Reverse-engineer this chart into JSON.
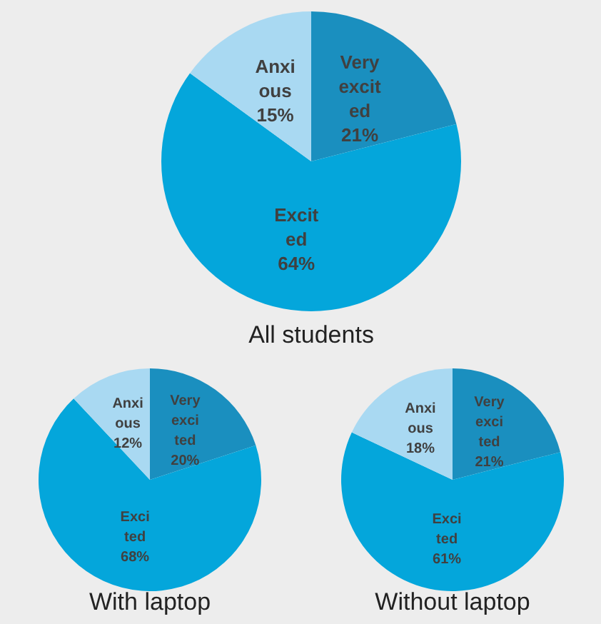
{
  "chart_data": [
    {
      "type": "pie",
      "title": "All students",
      "categories": [
        "Very excited",
        "Excited",
        "Anxious"
      ],
      "values": [
        21,
        64,
        15
      ],
      "value_labels": [
        "21%",
        "64%",
        "15%"
      ],
      "colors": [
        "#1a8fbf",
        "#04a6db",
        "#a9d9f2"
      ]
    },
    {
      "type": "pie",
      "title": "With laptop",
      "categories": [
        "Very excited",
        "Excited",
        "Anxious"
      ],
      "values": [
        20,
        68,
        12
      ],
      "value_labels": [
        "20%",
        "68%",
        "12%"
      ],
      "colors": [
        "#1a8fbf",
        "#04a6db",
        "#a9d9f2"
      ]
    },
    {
      "type": "pie",
      "title": "Without laptop",
      "categories": [
        "Very excited",
        "Excited",
        "Anxious"
      ],
      "values": [
        21,
        61,
        18
      ],
      "value_labels": [
        "21%",
        "61%",
        "18%"
      ],
      "colors": [
        "#1a8fbf",
        "#04a6db",
        "#a9d9f2"
      ]
    }
  ]
}
